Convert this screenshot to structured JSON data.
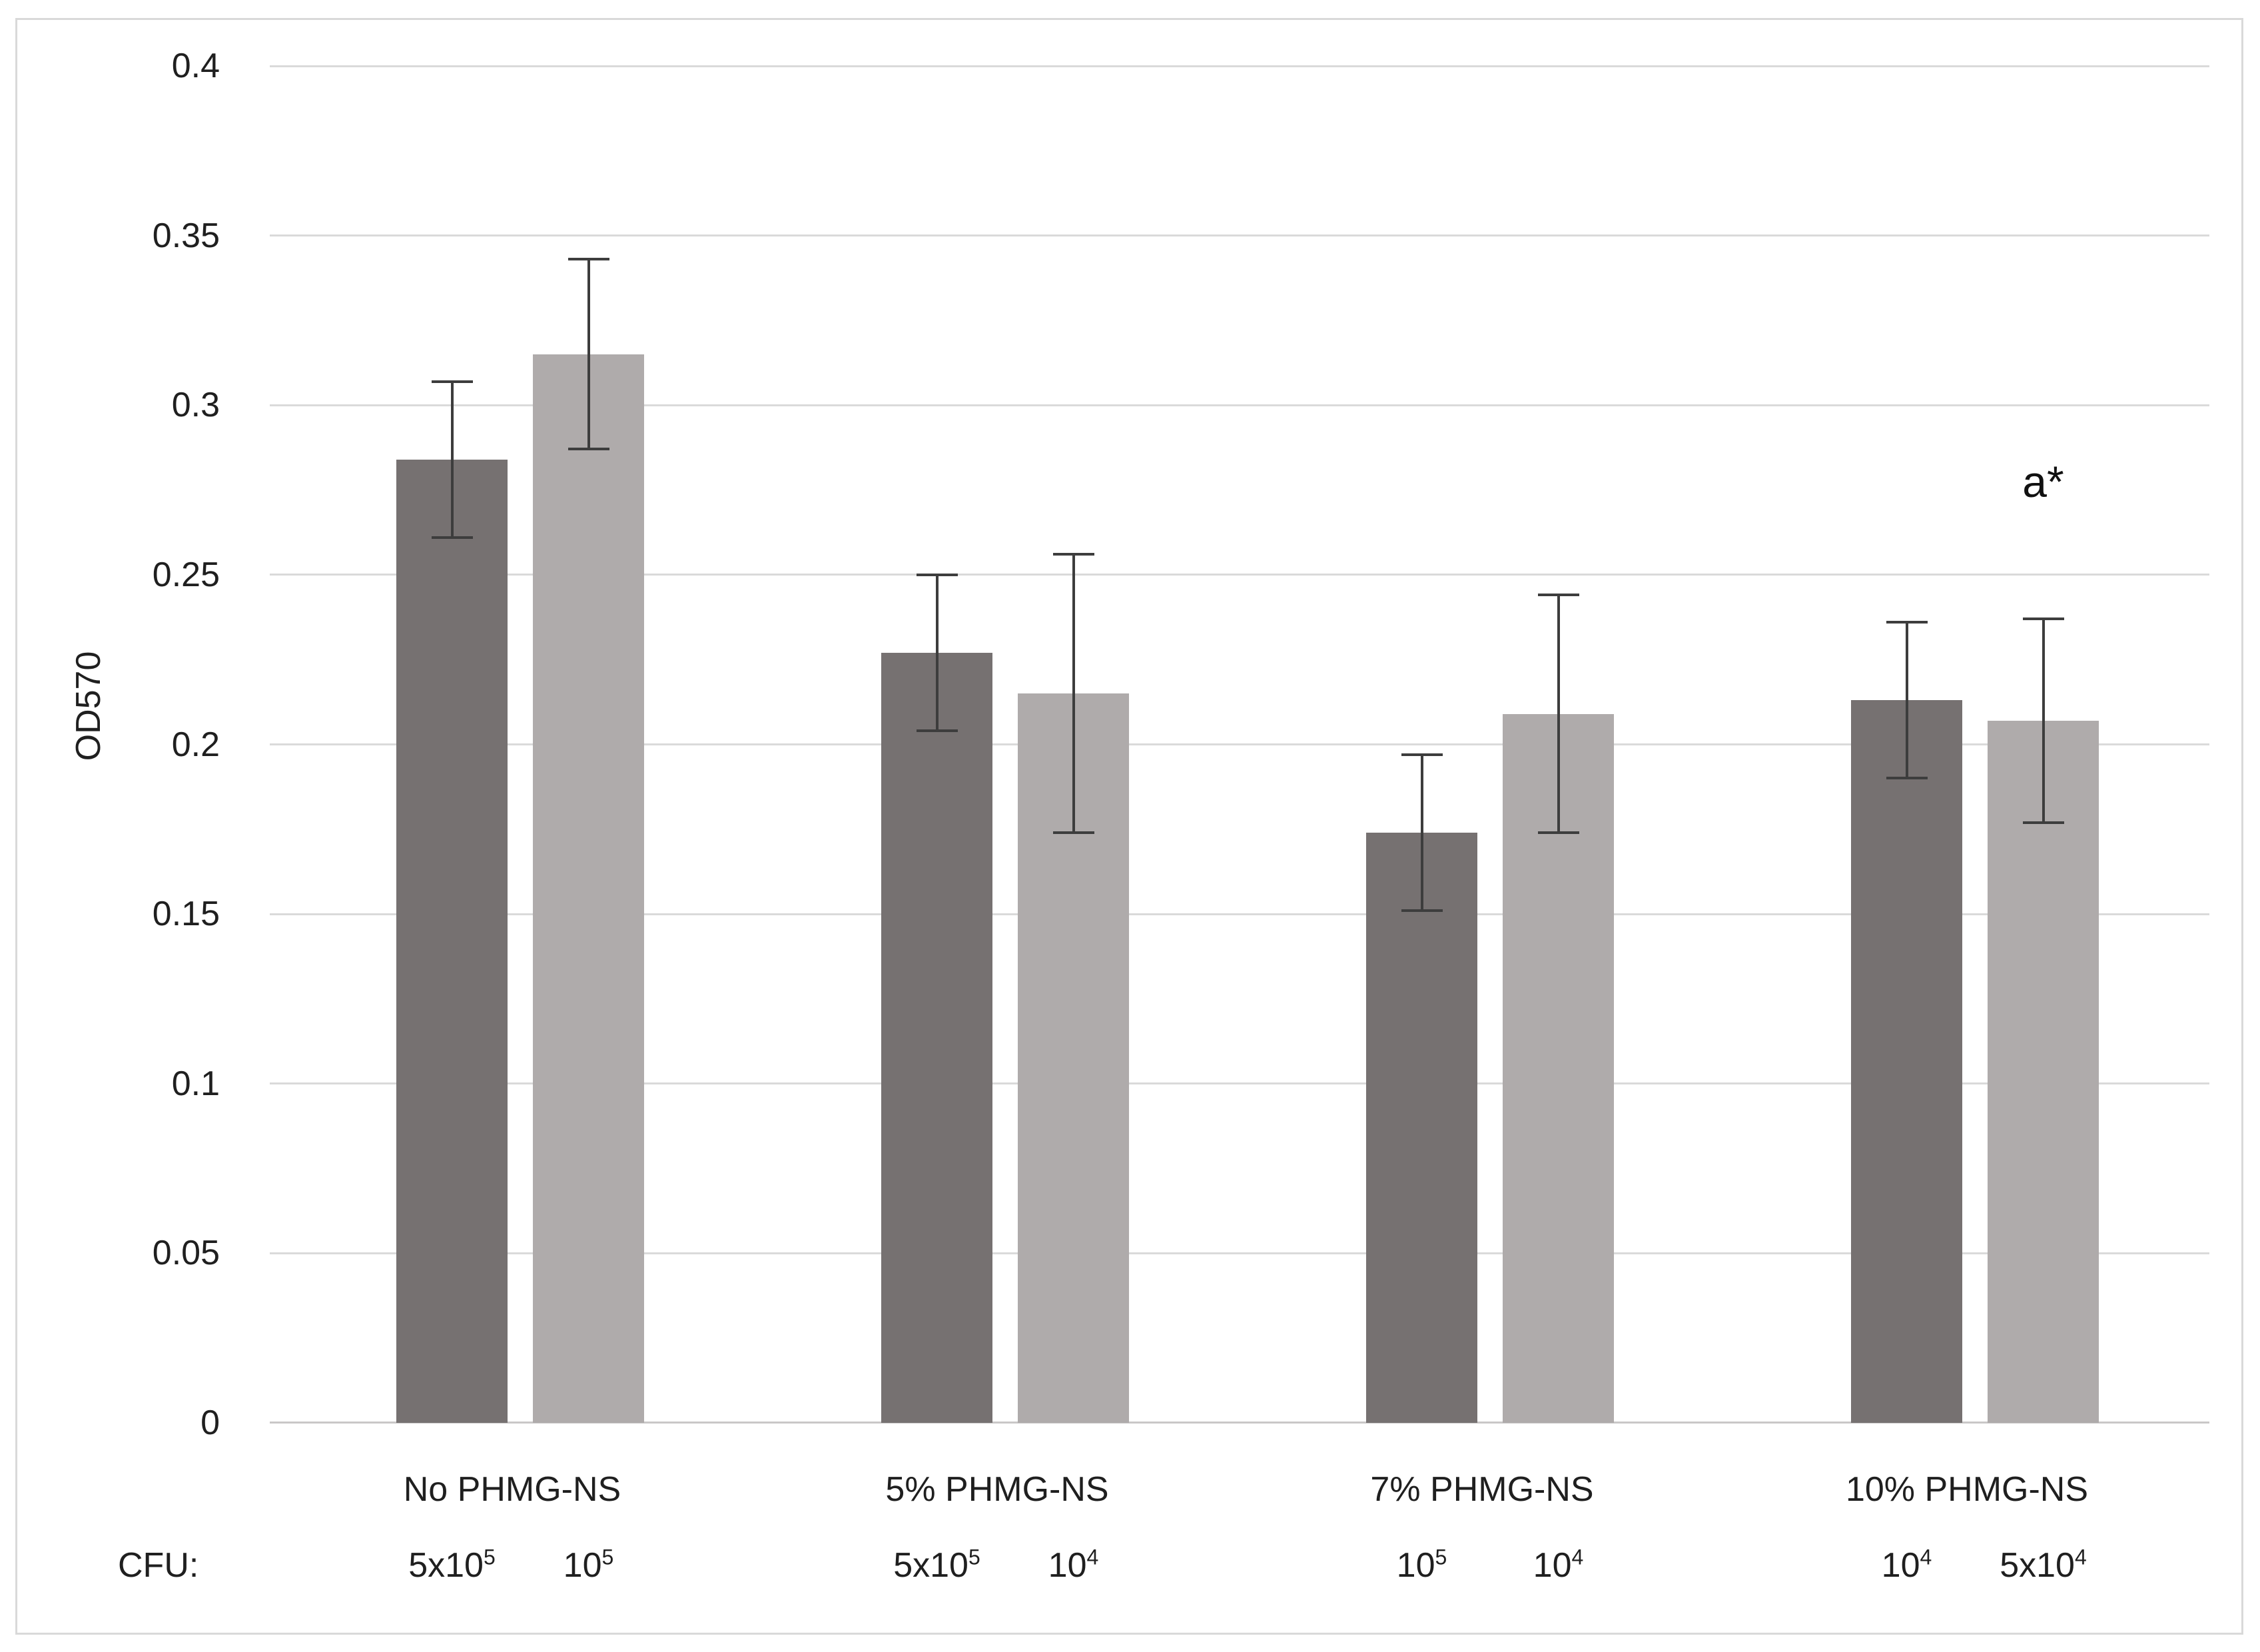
{
  "figure": {
    "background": "#ffffff",
    "frame_border_color": "#d9d9d9"
  },
  "chart_data": {
    "type": "bar",
    "title": "",
    "ylabel": "OD570",
    "xlabel": "",
    "ylim": [
      0,
      0.4
    ],
    "ytick_step": 0.05,
    "yticks": [
      "0.4",
      "0.35",
      "0.3",
      "0.25",
      "0.2",
      "0.15",
      "0.1",
      "0.05",
      "0"
    ],
    "ytick_values": [
      0.4,
      0.35,
      0.3,
      0.25,
      0.2,
      0.15,
      0.1,
      0.05,
      0
    ],
    "grid": true,
    "legend": "none",
    "categories": [
      "No PHMG-NS",
      "5% PHMG-NS",
      "7% PHMG-NS",
      "10% PHMG-NS"
    ],
    "cfu_row_prefix": "CFU:",
    "cfu_labels": [
      [
        {
          "base": "5x10",
          "exp": "5"
        },
        {
          "base": "10",
          "exp": "5"
        }
      ],
      [
        {
          "base": "5x10",
          "exp": "5"
        },
        {
          "base": "10",
          "exp": "4"
        }
      ],
      [
        {
          "base": "10",
          "exp": "5"
        },
        {
          "base": "10",
          "exp": "4"
        }
      ],
      [
        {
          "base": "10",
          "exp": "4"
        },
        {
          "base": "5x10",
          "exp": "4"
        }
      ]
    ],
    "series": [
      {
        "name": "dark-gray-bars",
        "color": "#767171",
        "values": [
          0.284,
          0.227,
          0.174,
          0.213
        ],
        "errors": [
          0.023,
          0.023,
          0.023,
          0.023
        ]
      },
      {
        "name": "light-gray-bars",
        "color": "#afabab",
        "values": [
          0.315,
          0.215,
          0.209,
          0.207
        ],
        "errors": [
          0.028,
          0.041,
          0.035,
          0.03
        ]
      }
    ],
    "annotation": {
      "text": "a*",
      "category_index": 3,
      "series_index": 1
    },
    "colors": {
      "gridline": "#dadada",
      "axis_line": "#c9c7c7",
      "error_bar": "#3d3d3d",
      "text": "#1f1f1f"
    }
  }
}
